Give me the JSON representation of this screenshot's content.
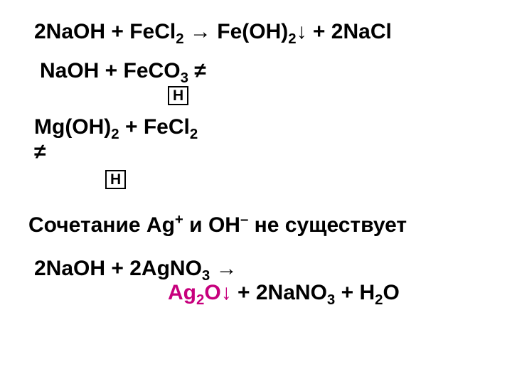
{
  "colors": {
    "text": "#000000",
    "highlight": "#c7007d",
    "background": "#ffffff",
    "boxBorder": "#000000"
  },
  "typography": {
    "fontFamily": "Arial",
    "baseSize": 30,
    "weight": "bold",
    "subscriptScale": 0.68
  },
  "box": {
    "label": "Н"
  },
  "equations": {
    "eq1": {
      "r1a": "2NaOH + FeCl",
      "r1a_sub": "2",
      "arrow": " → ",
      "p1": "Fe(OH)",
      "p1_sub": "2",
      "down": "↓",
      "plus": " + 2NaCl"
    },
    "eq2": {
      "r": "NaOH + FeCO",
      "r_sub": "3",
      "neq": "  ≠"
    },
    "eq3": {
      "r1": "Mg(OH)",
      "r1_sub": "2",
      "plus": " + FeCl",
      "r2_sub": "2",
      "neq": "≠"
    },
    "stmt": {
      "a": "Сочетание Ag",
      "sup1": "+",
      "b": " и OH",
      "sup2": "–",
      "c": " не существует"
    },
    "eq5": {
      "line1a": "2NaOH + 2AgNO",
      "line1a_sub": "3",
      "arrow": " →",
      "p1": "Ag",
      "p1_sub": "2",
      "p1b": "O",
      "down": "↓",
      "rest_a": " + 2NaNO",
      "rest_a_sub": "3",
      "rest_b": " + H",
      "rest_b_sub": "2",
      "rest_c": "O"
    }
  }
}
